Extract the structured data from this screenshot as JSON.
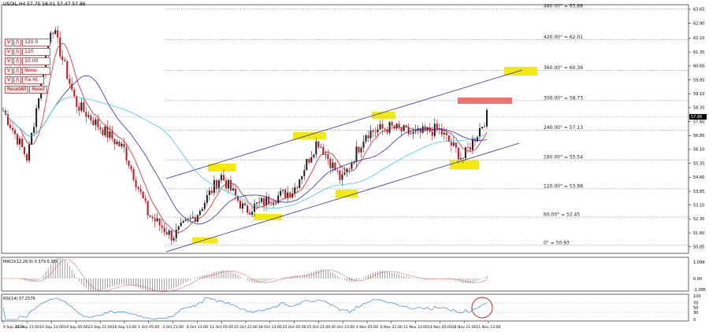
{
  "chart_title": "USOIL,H4  57.75 58.01 57.47 57.86",
  "toolbar": {
    "rows": [
      {
        "btn1": "V",
        "btn2": "/\\",
        "value": "120.0"
      },
      {
        "btn1": "V",
        "btn2": "/\\",
        "value": "120"
      },
      {
        "btn1": "V",
        "btn2": "/\\",
        "value": "10.00"
      },
      {
        "btn1": "V",
        "btn2": "/\\",
        "value": "None"
      },
      {
        "btn1": "V",
        "btn2": "/\\",
        "value": "Fix  Hi"
      },
      {
        "btn1": "ResetAll",
        "btn2": "Reset",
        "value": ""
      }
    ]
  },
  "chart_data": [
    {
      "type": "candlestick",
      "symbol": "USOIL",
      "timeframe": "H4",
      "ylim": [
        50.5,
        63.9
      ],
      "y_ticks": [
        "63.65",
        "62.90",
        "62.10",
        "61.35",
        "60.60",
        "59.85",
        "59.10",
        "58.35",
        "57.60",
        "56.85",
        "56.10",
        "55.35",
        "54.60",
        "53.85",
        "53.10",
        "52.35",
        "51.60",
        "50.85"
      ],
      "current_price": "57.86",
      "approx_close_path": [
        {
          "x": "9 Sep 2019",
          "y": 58.2
        },
        {
          "x": "11 Sep 21:00",
          "y": 55.6
        },
        {
          "x": "16 Sep 13:00",
          "y": 62.9
        },
        {
          "x": "19 Sep 05:00",
          "y": 58.6
        },
        {
          "x": "23 Sep 21:00",
          "y": 57.3
        },
        {
          "x": "26 Sep 13:00",
          "y": 56.1
        },
        {
          "x": "1 Oct 05:00",
          "y": 52.6
        },
        {
          "x": "3 Oct 21:00",
          "y": 51.4
        },
        {
          "x": "8 Oct 13:00",
          "y": 52.6
        },
        {
          "x": "11 Oct 05:00",
          "y": 54.7
        },
        {
          "x": "15 Oct 21:00",
          "y": 52.8
        },
        {
          "x": "18 Oct 13:00",
          "y": 53.4
        },
        {
          "x": "23 Oct 05:00",
          "y": 53.9
        },
        {
          "x": "25 Oct 21:00",
          "y": 56.6
        },
        {
          "x": "30 Oct 13:00",
          "y": 54.4
        },
        {
          "x": "4 Nov 05:00",
          "y": 57.0
        },
        {
          "x": "6 Nov 21:00",
          "y": 57.3
        },
        {
          "x": "11 Nov 13:00",
          "y": 56.9
        },
        {
          "x": "14 Nov 05:00",
          "y": 57.2
        },
        {
          "x": "18 Nov 21:00",
          "y": 55.6
        },
        {
          "x": "21 Nov 13:00",
          "y": 57.9
        }
      ],
      "fibonacci_levels": [
        {
          "label": "480.00° = 63.68",
          "value": 63.68
        },
        {
          "label": "420.00° = 62.01",
          "value": 62.01
        },
        {
          "label": "360.00° = 60.36",
          "value": 60.36
        },
        {
          "label": "300.00° = 58.73",
          "value": 58.73
        },
        {
          "label": "240.00° = 57.13",
          "value": 57.13
        },
        {
          "label": "180.00° = 55.54",
          "value": 55.54
        },
        {
          "label": "120.00° = 53.98",
          "value": 53.98
        },
        {
          "label": "60.00° = 52.45",
          "value": 52.45
        },
        {
          "label": "0° = 50.93",
          "value": 50.93
        }
      ],
      "colors": {
        "up": "#1c1c1c",
        "down": "#c0151c",
        "ma_red": "#e0202a",
        "ma_blue": "#2a2ab0",
        "ma_cyan": "#3fd0e0",
        "channel": "#2b2ba8",
        "highlight": "#f2e800",
        "resistance": "#f05a5a"
      }
    },
    {
      "type": "macd",
      "label": "MACD(12,26,9) 0.379 0.380",
      "y_ticks": [
        "1.099",
        "0.00",
        "-1.095"
      ],
      "colors": {
        "histogram": "#888888",
        "signal": "#e02020"
      }
    },
    {
      "type": "rsi",
      "label": "RSI(14) 57.2576",
      "y_ticks": [
        "100",
        "70",
        "50",
        "30",
        "0"
      ],
      "colors": {
        "line": "#1e6fd0",
        "marker_circle": "#d02020"
      }
    }
  ],
  "x_labels": [
    "9 Sep 2019",
    "11 Sep 21:00",
    "16 Sep 13:00",
    "19 Sep 05:00",
    "23 Sep 21:00",
    "26 Sep 13:00",
    "1 Oct 05:00",
    "3 Oct 21:00",
    "8 Oct 13:00",
    "11 Oct 05:00",
    "15 Oct 21:00",
    "18 Oct 13:00",
    "23 Oct 05:00",
    "25 Oct 21:00",
    "30 Oct 13:00",
    "4 Nov 05:00",
    "6 Nov 21:00",
    "11 Nov 13:00",
    "14 Nov 05:00",
    "18 Nov 21:00",
    "21 Nov 13:00"
  ]
}
